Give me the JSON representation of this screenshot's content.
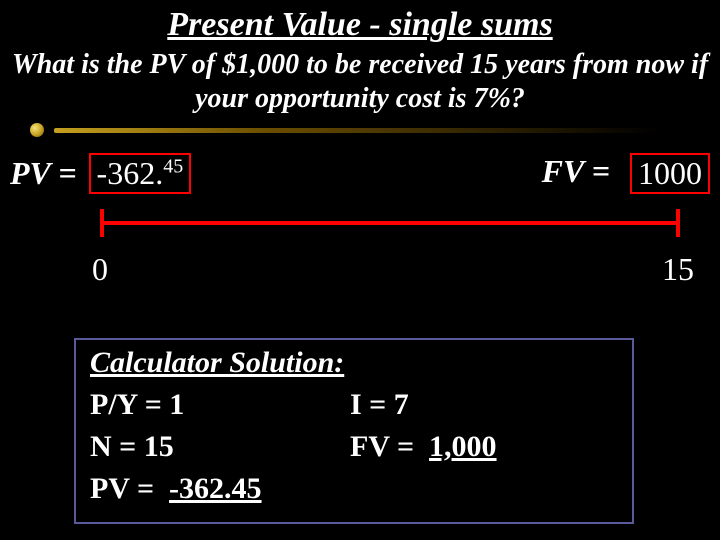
{
  "title": "Present Value - single sums",
  "question": "What is the PV of $1,000 to be received 15 years from now if your opportunity cost is 7%?",
  "pv": {
    "label": "PV =",
    "value_main": "-362.",
    "value_sup": "45",
    "box_color": "#ff0000"
  },
  "fv": {
    "label": "FV =",
    "value": "1000",
    "box_color": "#ff0000"
  },
  "timeline": {
    "start_label": "0",
    "end_label": "15",
    "line_color": "#ff0000"
  },
  "solution": {
    "heading": "Calculator Solution:",
    "rows": [
      {
        "left": "P/Y = 1",
        "right": "I = 7"
      },
      {
        "left": "N = 15",
        "right_prefix": "FV = ",
        "right_underlined": "1,000"
      }
    ],
    "last_prefix": "PV = ",
    "last_underlined": "-362.45",
    "border_color": "#5a5a9a"
  },
  "colors": {
    "background": "#000000",
    "text": "#ffffff",
    "accent_gold_light": "#c5a020",
    "accent_gold_dark": "#6b4e00"
  }
}
